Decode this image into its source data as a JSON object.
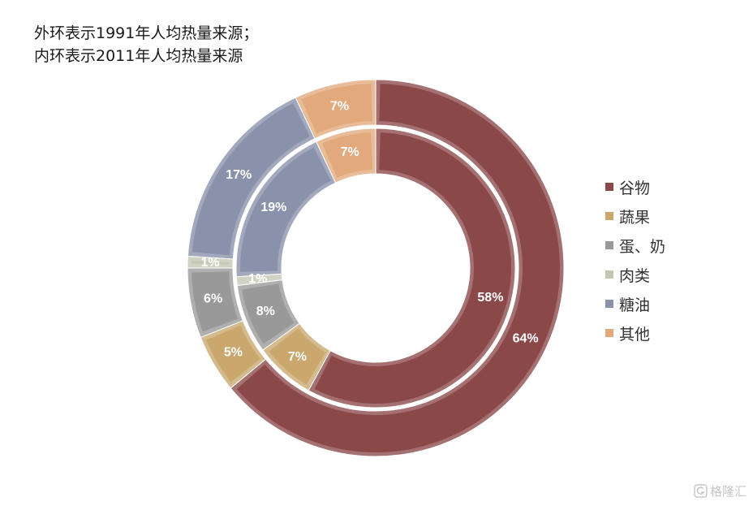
{
  "chart_data": {
    "type": "pie",
    "style": "nested-donut",
    "title_lines": [
      "外环表示1991年人均热量来源；",
      "内环表示2011年人均热量来源"
    ],
    "categories": [
      "谷物",
      "蔬果",
      "蛋、奶",
      "肉类",
      "糖油",
      "其他"
    ],
    "colors": [
      "#8B4849",
      "#C9A76D",
      "#999999",
      "#C3C6B2",
      "#8991AB",
      "#E1A97C"
    ],
    "rings": [
      {
        "position": "outer",
        "values": [
          64,
          5,
          6,
          1,
          17,
          7
        ]
      },
      {
        "position": "inner",
        "values": [
          58,
          7,
          8,
          1,
          19,
          7
        ]
      }
    ],
    "value_suffix": "%",
    "start": "top",
    "direction": "clockwise",
    "legend": "right"
  },
  "watermark": {
    "text": "格隆汇"
  }
}
